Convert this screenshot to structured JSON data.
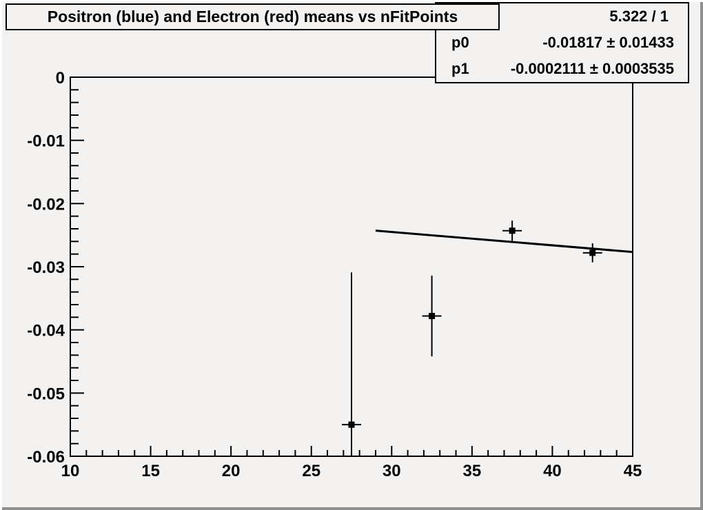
{
  "canvas": {
    "background_color": "#f3f2f1",
    "bevel_light_color": "#fdfdfd",
    "bevel_dark_color": "#8f8f8f",
    "axis_color": "#000000"
  },
  "title_box": {
    "text": "Positron (blue) and Electron (red) means vs nFitPoints"
  },
  "stats_box": {
    "chi2": "5.322 / 1",
    "params": [
      {
        "name": "p0",
        "value": "-0.01817 ± 0.01433"
      },
      {
        "name": "p1",
        "value": "-0.0002111 ± 0.0003535"
      }
    ]
  },
  "chart_data": {
    "type": "scatter",
    "title": "Positron (blue) and Electron (red) means vs nFitPoints",
    "xlabel": "",
    "ylabel": "",
    "xlim": [
      10,
      45
    ],
    "ylim": [
      -0.06,
      0
    ],
    "grid": false,
    "x_axis": {
      "major_ticks": [
        10,
        15,
        20,
        25,
        30,
        35,
        40,
        45
      ],
      "tick_labels": [
        "10",
        "15",
        "20",
        "25",
        "30",
        "35",
        "40",
        "45"
      ],
      "minor_tick_step": 1
    },
    "y_axis": {
      "major_ticks": [
        0,
        -0.01,
        -0.02,
        -0.03,
        -0.04,
        -0.05,
        -0.06
      ],
      "tick_labels": [
        "0",
        "-0.01",
        "-0.02",
        "-0.03",
        "-0.04",
        "-0.05",
        "-0.06"
      ],
      "minor_tick_step": 0.002
    },
    "series": [
      {
        "name": "means-vs-nfitpoints",
        "marker": "filled-square",
        "color": "#000000",
        "points": [
          {
            "x": 27.5,
            "y": -0.055,
            "x_err": 0.6,
            "y_err": 0.0241
          },
          {
            "x": 32.5,
            "y": -0.0378,
            "x_err": 0.6,
            "y_err": 0.0064
          },
          {
            "x": 37.5,
            "y": -0.0243,
            "x_err": 0.6,
            "y_err": 0.0016
          },
          {
            "x": 42.5,
            "y": -0.0278,
            "x_err": 0.6,
            "y_err": 0.0015
          }
        ]
      }
    ],
    "fit": {
      "p0": -0.01817,
      "p1": -0.0002111,
      "x_range": [
        29.0,
        45.0
      ],
      "color": "#000000"
    }
  }
}
